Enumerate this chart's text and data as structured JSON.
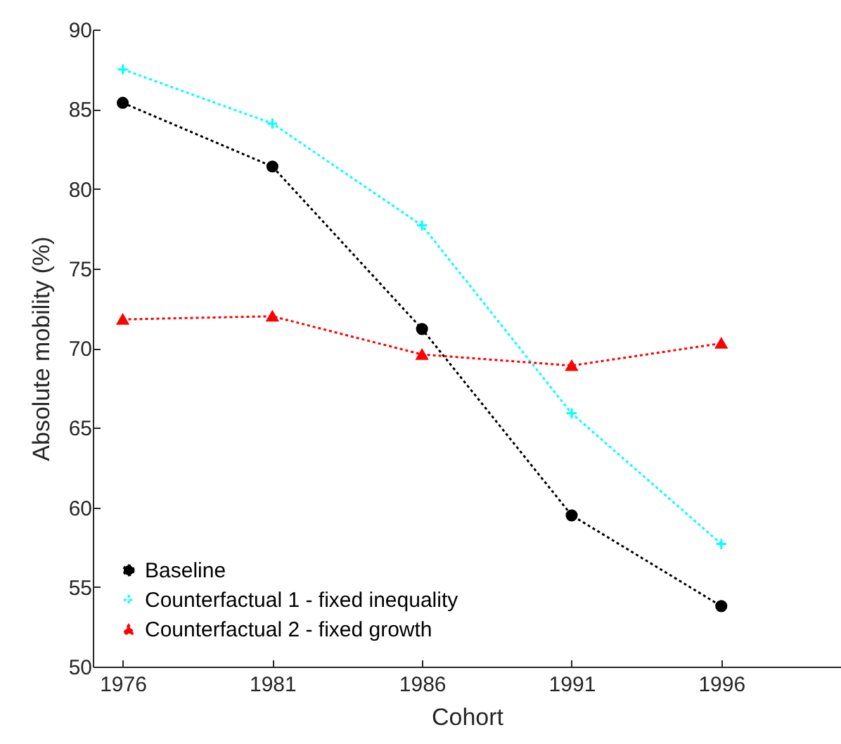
{
  "chart_data": {
    "type": "line",
    "xlabel": "Cohort",
    "ylabel": "Absolute mobility (%)",
    "x": [
      1976,
      1981,
      1986,
      1991,
      1996
    ],
    "series": [
      {
        "name": "Baseline",
        "color": "#000000",
        "marker": "circle",
        "line_style": "dotted",
        "values": [
          85.4,
          81.4,
          71.2,
          59.5,
          53.8
        ]
      },
      {
        "name": "Counterfactual 1 - fixed inequality",
        "color": "#00ffff",
        "marker": "cross",
        "line_style": "dotted",
        "values": [
          87.5,
          84.1,
          77.7,
          65.9,
          57.7
        ]
      },
      {
        "name": "Counterfactual 2 - fixed growth",
        "color": "#ff0000",
        "marker": "triangle",
        "line_style": "dotted",
        "values": [
          71.8,
          72.0,
          69.6,
          68.9,
          70.3
        ]
      }
    ],
    "xlim": [
      1975,
      2000
    ],
    "xticks": [
      1976,
      1981,
      1986,
      1991,
      1996
    ],
    "ylim": [
      50,
      90
    ],
    "yticks": [
      50,
      55,
      60,
      65,
      70,
      75,
      80,
      85,
      90
    ],
    "grid": false,
    "legend": "bottom left"
  }
}
